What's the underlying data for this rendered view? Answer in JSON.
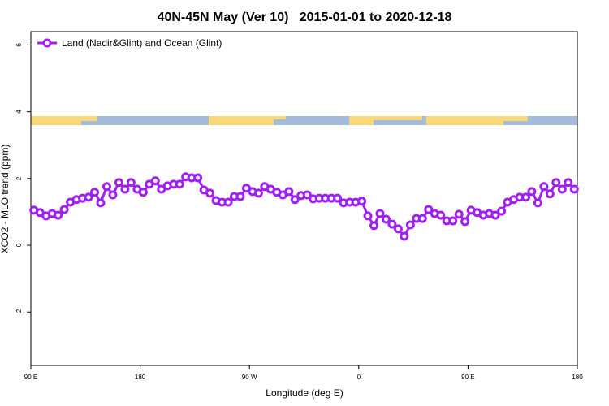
{
  "chart_data": {
    "type": "line",
    "title": "40N-45N May (Ver 10)   2015-01-01 to 2020-12-18",
    "x_label": "Longitude (deg E)",
    "y_label": "XCO2 - MLO trend (ppm)",
    "legend_position": "top-left",
    "xlim": [
      90,
      540
    ],
    "xticks": [
      {
        "value": 90,
        "label": "90 E"
      },
      {
        "value": 180,
        "label": "180"
      },
      {
        "value": 270,
        "label": "90 W"
      },
      {
        "value": 360,
        "label": "0"
      },
      {
        "value": 450,
        "label": "90 E"
      },
      {
        "value": 540,
        "label": "180"
      }
    ],
    "ylim": [
      -3.6,
      6.4
    ],
    "yticks": [
      -2,
      0,
      2,
      4,
      6
    ],
    "x": [
      92.5,
      97.5,
      102.5,
      107.5,
      112.5,
      117.5,
      122.5,
      127.5,
      132.5,
      137.5,
      142.5,
      147.5,
      152.5,
      157.5,
      162.5,
      167.5,
      172.5,
      177.5,
      182.5,
      187.5,
      192.5,
      197.5,
      202.5,
      207.5,
      212.5,
      217.5,
      222.5,
      227.5,
      232.5,
      237.5,
      242.5,
      247.5,
      252.5,
      257.5,
      262.5,
      267.5,
      272.5,
      277.5,
      282.5,
      287.5,
      292.5,
      297.5,
      302.5,
      307.5,
      312.5,
      317.5,
      322.5,
      327.5,
      332.5,
      337.5,
      342.5,
      347.5,
      352.5,
      357.5,
      362.5,
      367.5,
      372.5,
      377.5,
      382.5,
      387.5,
      392.5,
      397.5,
      402.5,
      407.5,
      412.5,
      417.5,
      422.5,
      427.5,
      432.5,
      437.5,
      442.5,
      447.5,
      452.5,
      457.5,
      462.5,
      467.5,
      472.5,
      477.5,
      482.5,
      487.5,
      492.5,
      497.5,
      502.5,
      507.5,
      512.5,
      517.5,
      522.5,
      527.5,
      532.5,
      537.5
    ],
    "series": [
      {
        "name": "Land (Nadir&Glint) and Ocean (Glint)",
        "color": "#a020f0",
        "values": [
          1.05,
          0.98,
          0.88,
          0.95,
          0.9,
          1.07,
          1.29,
          1.37,
          1.41,
          1.44,
          1.59,
          1.27,
          1.76,
          1.51,
          1.88,
          1.68,
          1.88,
          1.68,
          1.59,
          1.83,
          1.93,
          1.68,
          1.78,
          1.83,
          1.83,
          2.05,
          2.02,
          2.02,
          1.66,
          1.56,
          1.34,
          1.29,
          1.29,
          1.46,
          1.46,
          1.71,
          1.61,
          1.56,
          1.76,
          1.68,
          1.59,
          1.51,
          1.61,
          1.37,
          1.49,
          1.51,
          1.39,
          1.41,
          1.41,
          1.41,
          1.41,
          1.27,
          1.29,
          1.29,
          1.32,
          0.88,
          0.59,
          0.95,
          0.78,
          0.63,
          0.49,
          0.27,
          0.61,
          0.8,
          0.8,
          1.07,
          0.95,
          0.9,
          0.73,
          0.73,
          0.93,
          0.71,
          1.05,
          0.98,
          0.9,
          0.95,
          0.9,
          1.02,
          1.29,
          1.37,
          1.44,
          1.44,
          1.61,
          1.27,
          1.76,
          1.54,
          1.88,
          1.68,
          1.88,
          1.68
        ]
      }
    ]
  }
}
